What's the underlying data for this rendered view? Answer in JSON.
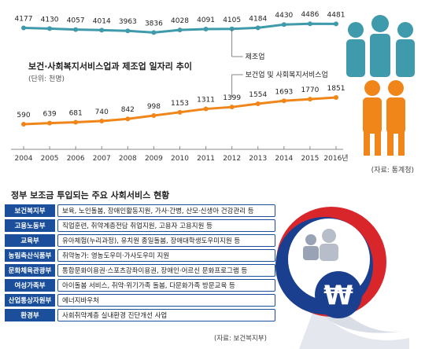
{
  "chart_data": {
    "type": "line",
    "title": "보건·사회복지서비스업과 제조업 일자리 추이",
    "unit": "(단위: 천명)",
    "categories": [
      "2004",
      "2005",
      "2006",
      "2007",
      "2008",
      "2009",
      "2010",
      "2011",
      "2012",
      "2013",
      "2014",
      "2015",
      "2016년"
    ],
    "series": [
      {
        "name": "제조업",
        "color": "#3f9aab",
        "values": [
          4177,
          4130,
          4057,
          4014,
          3963,
          3836,
          4028,
          4091,
          4105,
          4184,
          4430,
          4486,
          4481
        ]
      },
      {
        "name": "보건업 및 사회복지서비스업",
        "color": "#f0861a",
        "values": [
          590,
          639,
          681,
          740,
          842,
          998,
          1153,
          1311,
          1399,
          1554,
          1693,
          1770,
          1851
        ]
      }
    ],
    "source": "(자료: 통계청)"
  },
  "table_title": "정부 보조금 투입되는 주요 사회서비스 현황",
  "table": [
    {
      "dept": "보건복지부",
      "services": "보육, 노인돌봄, 장애인활동지원, 가사·간병, 산모·신생아 건강관리 등"
    },
    {
      "dept": "고용노동부",
      "services": "직업훈련, 취약계층전담 취업지원, 고용자 고용지원 등"
    },
    {
      "dept": "교육부",
      "services": "유아체험(누리과정), 유치원 종일돌봄, 장애대학생도우미지원 등"
    },
    {
      "dept": "농림축산식품부",
      "services": "취약농가: 영농도우미·가사도우미 지원"
    },
    {
      "dept": "문화체육관광부",
      "services": "통합문화이용권·스포츠강좌이용권, 장애인·어르신 문화프로그램 등"
    },
    {
      "dept": "여성가족부",
      "services": "아이돌봄 서비스, 취약·위기가족 돌봄, 다문화가족 방문교육 등"
    },
    {
      "dept": "산업통상자원부",
      "services": "에너지바우처"
    },
    {
      "dept": "환경부",
      "services": "사회취약계층 실내환경 진단개선 사업"
    }
  ],
  "table_source": "(자료: 보건복지부)",
  "colors": {
    "accent_blue": "#1b4f9c",
    "manufacturing": "#3f9aab",
    "health": "#f0861a",
    "emblem_red": "#d9262b"
  }
}
